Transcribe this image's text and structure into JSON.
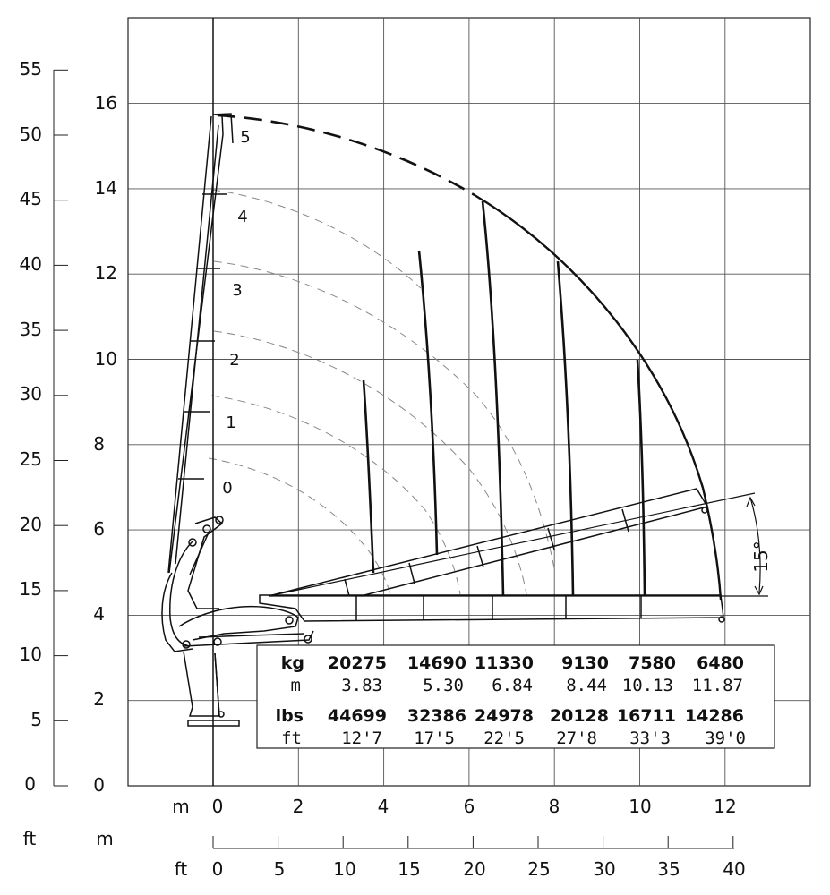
{
  "left_axis": {
    "ft_ticks": [
      "55",
      "50",
      "45",
      "40",
      "35",
      "30",
      "25",
      "20",
      "15",
      "10",
      "5",
      "0"
    ],
    "m_ticks": [
      "16",
      "14",
      "12",
      "10",
      "8",
      "6",
      "4",
      "2",
      "0"
    ]
  },
  "bottom_axis": {
    "m_unit": "m",
    "m_ticks": [
      "0",
      "2",
      "4",
      "6",
      "8",
      "10",
      "12"
    ],
    "ft_unit_left": "ft",
    "m_unit_left": "m",
    "ft_unit": "ft",
    "ft_ticks": [
      "0",
      "5",
      "10",
      "15",
      "20",
      "25",
      "30",
      "35",
      "40"
    ]
  },
  "sections": [
    "5",
    "4",
    "3",
    "2",
    "1",
    "0"
  ],
  "angle_label": "15°",
  "load_table": {
    "kg_label": "kg",
    "kg": [
      "20275",
      "14690",
      "11330",
      "9130",
      "7580",
      "6480"
    ],
    "m_label": "m",
    "m": [
      "3.83",
      "5.30",
      "6.84",
      "8.44",
      "10.13",
      "11.87"
    ],
    "lbs_label": "lbs",
    "lbs": [
      "44699",
      "32386",
      "24978",
      "20128",
      "16711",
      "14286"
    ],
    "ft_label": "ft",
    "ft": [
      "12'7",
      "17'5",
      "22'5",
      "27'8",
      "33'3",
      "39'0"
    ]
  }
}
